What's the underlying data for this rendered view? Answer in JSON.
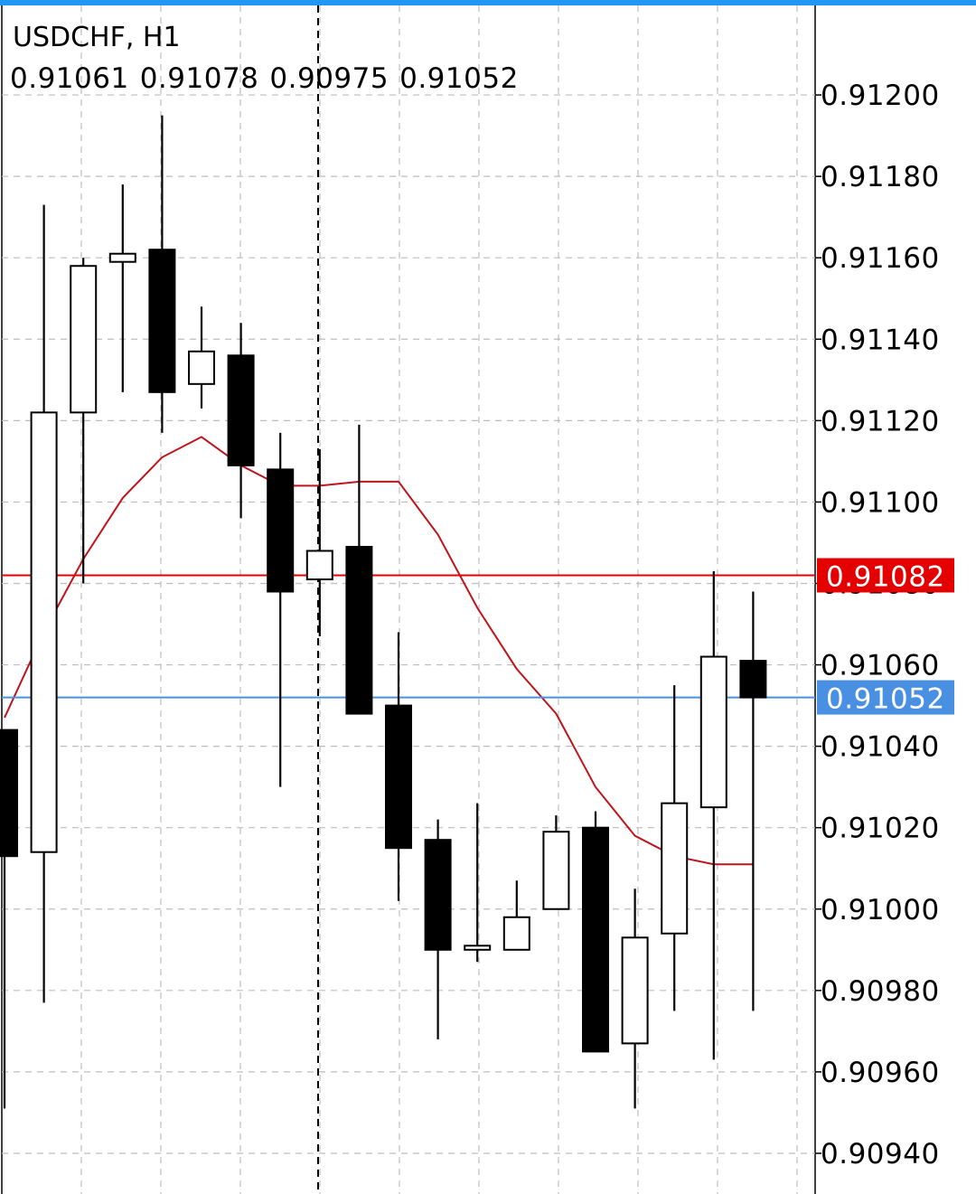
{
  "chart": {
    "symbol_label": "USDCHF, H1",
    "ohlc": {
      "open": "0.91061",
      "high": "0.91078",
      "low": "0.90975",
      "close": "0.91052"
    },
    "price_lines": {
      "ask": {
        "label": "0.91082",
        "value": 0.91082,
        "color": "#e50000"
      },
      "bid": {
        "label": "0.91052",
        "value": 0.91052,
        "color": "#4a90e2"
      }
    },
    "colors": {
      "bull_body": "#ffffff",
      "bear_body": "#000000",
      "wick": "#000000",
      "moving_average": "#c0141c",
      "grid": "#bdbdbd",
      "top_bar": "#2196f3"
    }
  },
  "chart_data": {
    "type": "candlestick",
    "title": "USDCHF, H1",
    "y_axis": {
      "ylim": [
        0.9093,
        0.91222
      ],
      "ticks": [
        "0.91200",
        "0.91180",
        "0.91160",
        "0.91140",
        "0.91120",
        "0.91100",
        "0.91080",
        "0.91060",
        "0.91040",
        "0.91020",
        "0.91000",
        "0.90980",
        "0.90960",
        "0.90940"
      ],
      "tick_values": [
        0.912,
        0.9118,
        0.9116,
        0.9114,
        0.9112,
        0.911,
        0.9108,
        0.9106,
        0.9104,
        0.9102,
        0.91,
        0.9098,
        0.9096,
        0.9094
      ],
      "position": "right"
    },
    "grid": true,
    "period_separator_index": 8,
    "candles": [
      {
        "open": 0.91044,
        "high": 0.91044,
        "low": 0.90951,
        "close": 0.91013
      },
      {
        "open": 0.91014,
        "high": 0.91173,
        "low": 0.90977,
        "close": 0.91122
      },
      {
        "open": 0.91122,
        "high": 0.9116,
        "low": 0.9108,
        "close": 0.91158
      },
      {
        "open": 0.91159,
        "high": 0.91178,
        "low": 0.91127,
        "close": 0.91161
      },
      {
        "open": 0.91162,
        "high": 0.91195,
        "low": 0.91117,
        "close": 0.91127
      },
      {
        "open": 0.91129,
        "high": 0.91148,
        "low": 0.91123,
        "close": 0.91137
      },
      {
        "open": 0.91136,
        "high": 0.91144,
        "low": 0.91096,
        "close": 0.91109
      },
      {
        "open": 0.91108,
        "high": 0.91117,
        "low": 0.9103,
        "close": 0.91078
      },
      {
        "open": 0.91081,
        "high": 0.91113,
        "low": 0.91067,
        "close": 0.91088
      },
      {
        "open": 0.91089,
        "high": 0.91119,
        "low": 0.91048,
        "close": 0.91048
      },
      {
        "open": 0.9105,
        "high": 0.91068,
        "low": 0.91002,
        "close": 0.91015
      },
      {
        "open": 0.91017,
        "high": 0.91022,
        "low": 0.90968,
        "close": 0.9099
      },
      {
        "open": 0.9099,
        "high": 0.91026,
        "low": 0.90987,
        "close": 0.90991
      },
      {
        "open": 0.9099,
        "high": 0.91007,
        "low": 0.9099,
        "close": 0.90998
      },
      {
        "open": 0.91,
        "high": 0.91023,
        "low": 0.91,
        "close": 0.91019
      },
      {
        "open": 0.9102,
        "high": 0.91024,
        "low": 0.90965,
        "close": 0.90965
      },
      {
        "open": 0.90967,
        "high": 0.91005,
        "low": 0.90951,
        "close": 0.90993
      },
      {
        "open": 0.90994,
        "high": 0.91055,
        "low": 0.90975,
        "close": 0.91026
      },
      {
        "open": 0.91025,
        "high": 0.91083,
        "low": 0.90963,
        "close": 0.91062
      },
      {
        "open": 0.91061,
        "high": 0.91078,
        "low": 0.90975,
        "close": 0.91052
      }
    ],
    "moving_average": [
      0.91047,
      0.91068,
      0.91086,
      0.91101,
      0.91111,
      0.91116,
      0.91109,
      0.91104,
      0.91104,
      0.91105,
      0.91105,
      0.91092,
      0.91074,
      0.91059,
      0.91048,
      0.9103,
      0.91018,
      0.91013,
      0.91011,
      0.91011
    ]
  }
}
